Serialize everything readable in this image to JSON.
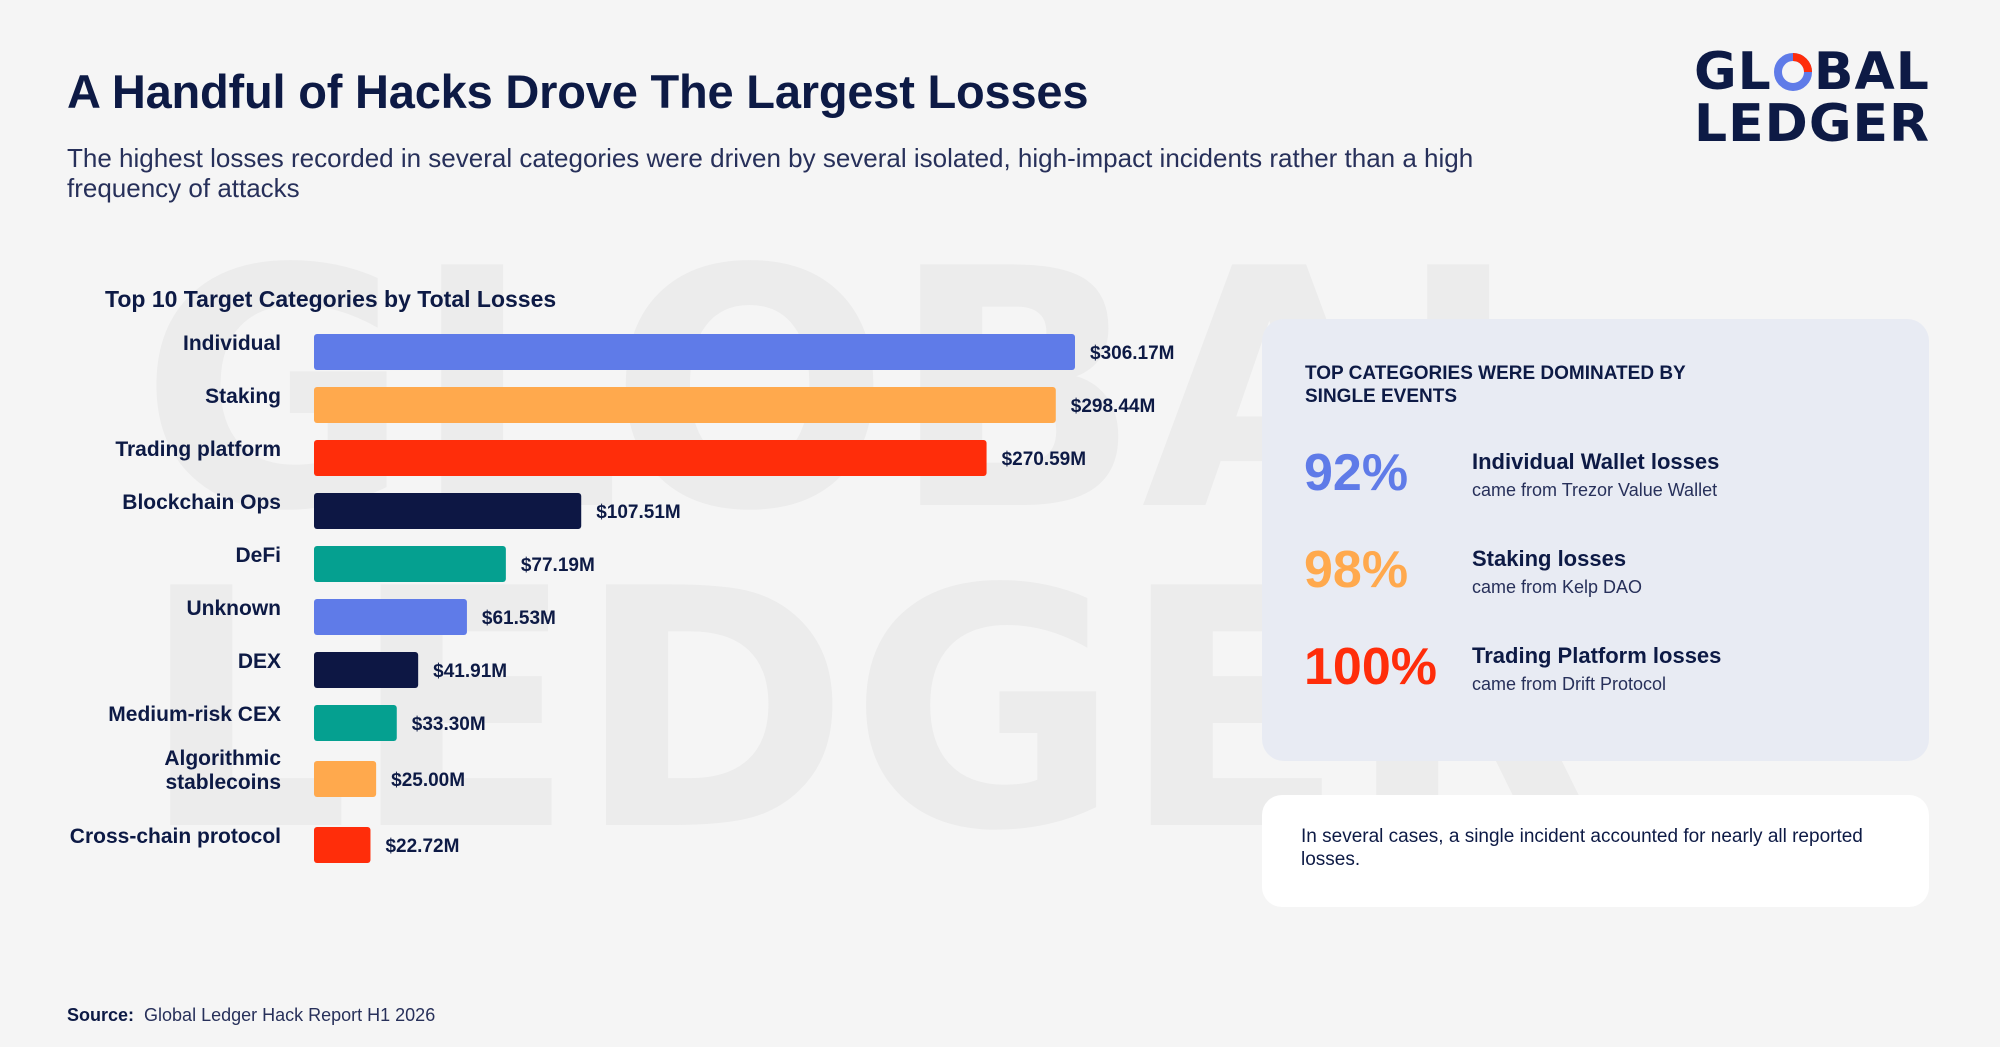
{
  "header": {
    "title": "A Handful of Hacks Drove The Largest Losses",
    "subtitle": "The highest losses recorded in several categories were driven by several isolated, high-impact incidents rather than a high frequency of attacks"
  },
  "logo": {
    "line1_a": "GL",
    "line1_b": "BAL",
    "line2": "LEDGER",
    "accent_colors": [
      "#ff2d0a",
      "#5f7be8"
    ]
  },
  "watermark": {
    "line1": "GLOBAL",
    "line2": "LEDGER"
  },
  "chart_data": {
    "type": "bar",
    "orientation": "horizontal",
    "title": "Top 10 Target Categories by Total Losses",
    "categories": [
      "Individual",
      "Staking",
      "Trading platform",
      "Blockchain Ops",
      "DeFi",
      "Unknown",
      "DEX",
      "Medium-risk CEX",
      "Algorithmic stablecoins",
      "Cross-chain protocol"
    ],
    "values": [
      306.17,
      298.44,
      270.59,
      107.51,
      77.19,
      61.53,
      41.91,
      33.3,
      25.0,
      22.72
    ],
    "value_labels": [
      "$306.17M",
      "$298.44M",
      "$270.59M",
      "$107.51M",
      "$77.19M",
      "$61.53M",
      "$41.91M",
      "$33.30M",
      "$25.00M",
      "$22.72M"
    ],
    "colors": [
      "#5f7be8",
      "#ffa94d",
      "#ff2d0a",
      "#0d1744",
      "#05a090",
      "#5f7be8",
      "#0d1744",
      "#05a090",
      "#ffa94d",
      "#ff2d0a"
    ],
    "unit": "$M",
    "xlim": [
      0,
      306.17
    ],
    "grid": false,
    "legend": "none"
  },
  "panel": {
    "heading": "TOP CATEGORIES WERE DOMINATED BY SINGLE EVENTS",
    "stats": [
      {
        "value": "92%",
        "title": "Individual Wallet losses",
        "desc": "came from Trezor Value Wallet",
        "color": "#5f7be8"
      },
      {
        "value": "98%",
        "title": "Staking losses",
        "desc": "came from Kelp DAO",
        "color": "#ffa94d"
      },
      {
        "value": "100%",
        "title": "Trading Platform losses",
        "desc": "came from Drift Protocol",
        "color": "#ff2d0a"
      }
    ]
  },
  "note": "In several cases, a single incident accounted for nearly all reported losses.",
  "source": {
    "label": "Source:",
    "text": "Global Ledger Hack Report H1 2026"
  }
}
